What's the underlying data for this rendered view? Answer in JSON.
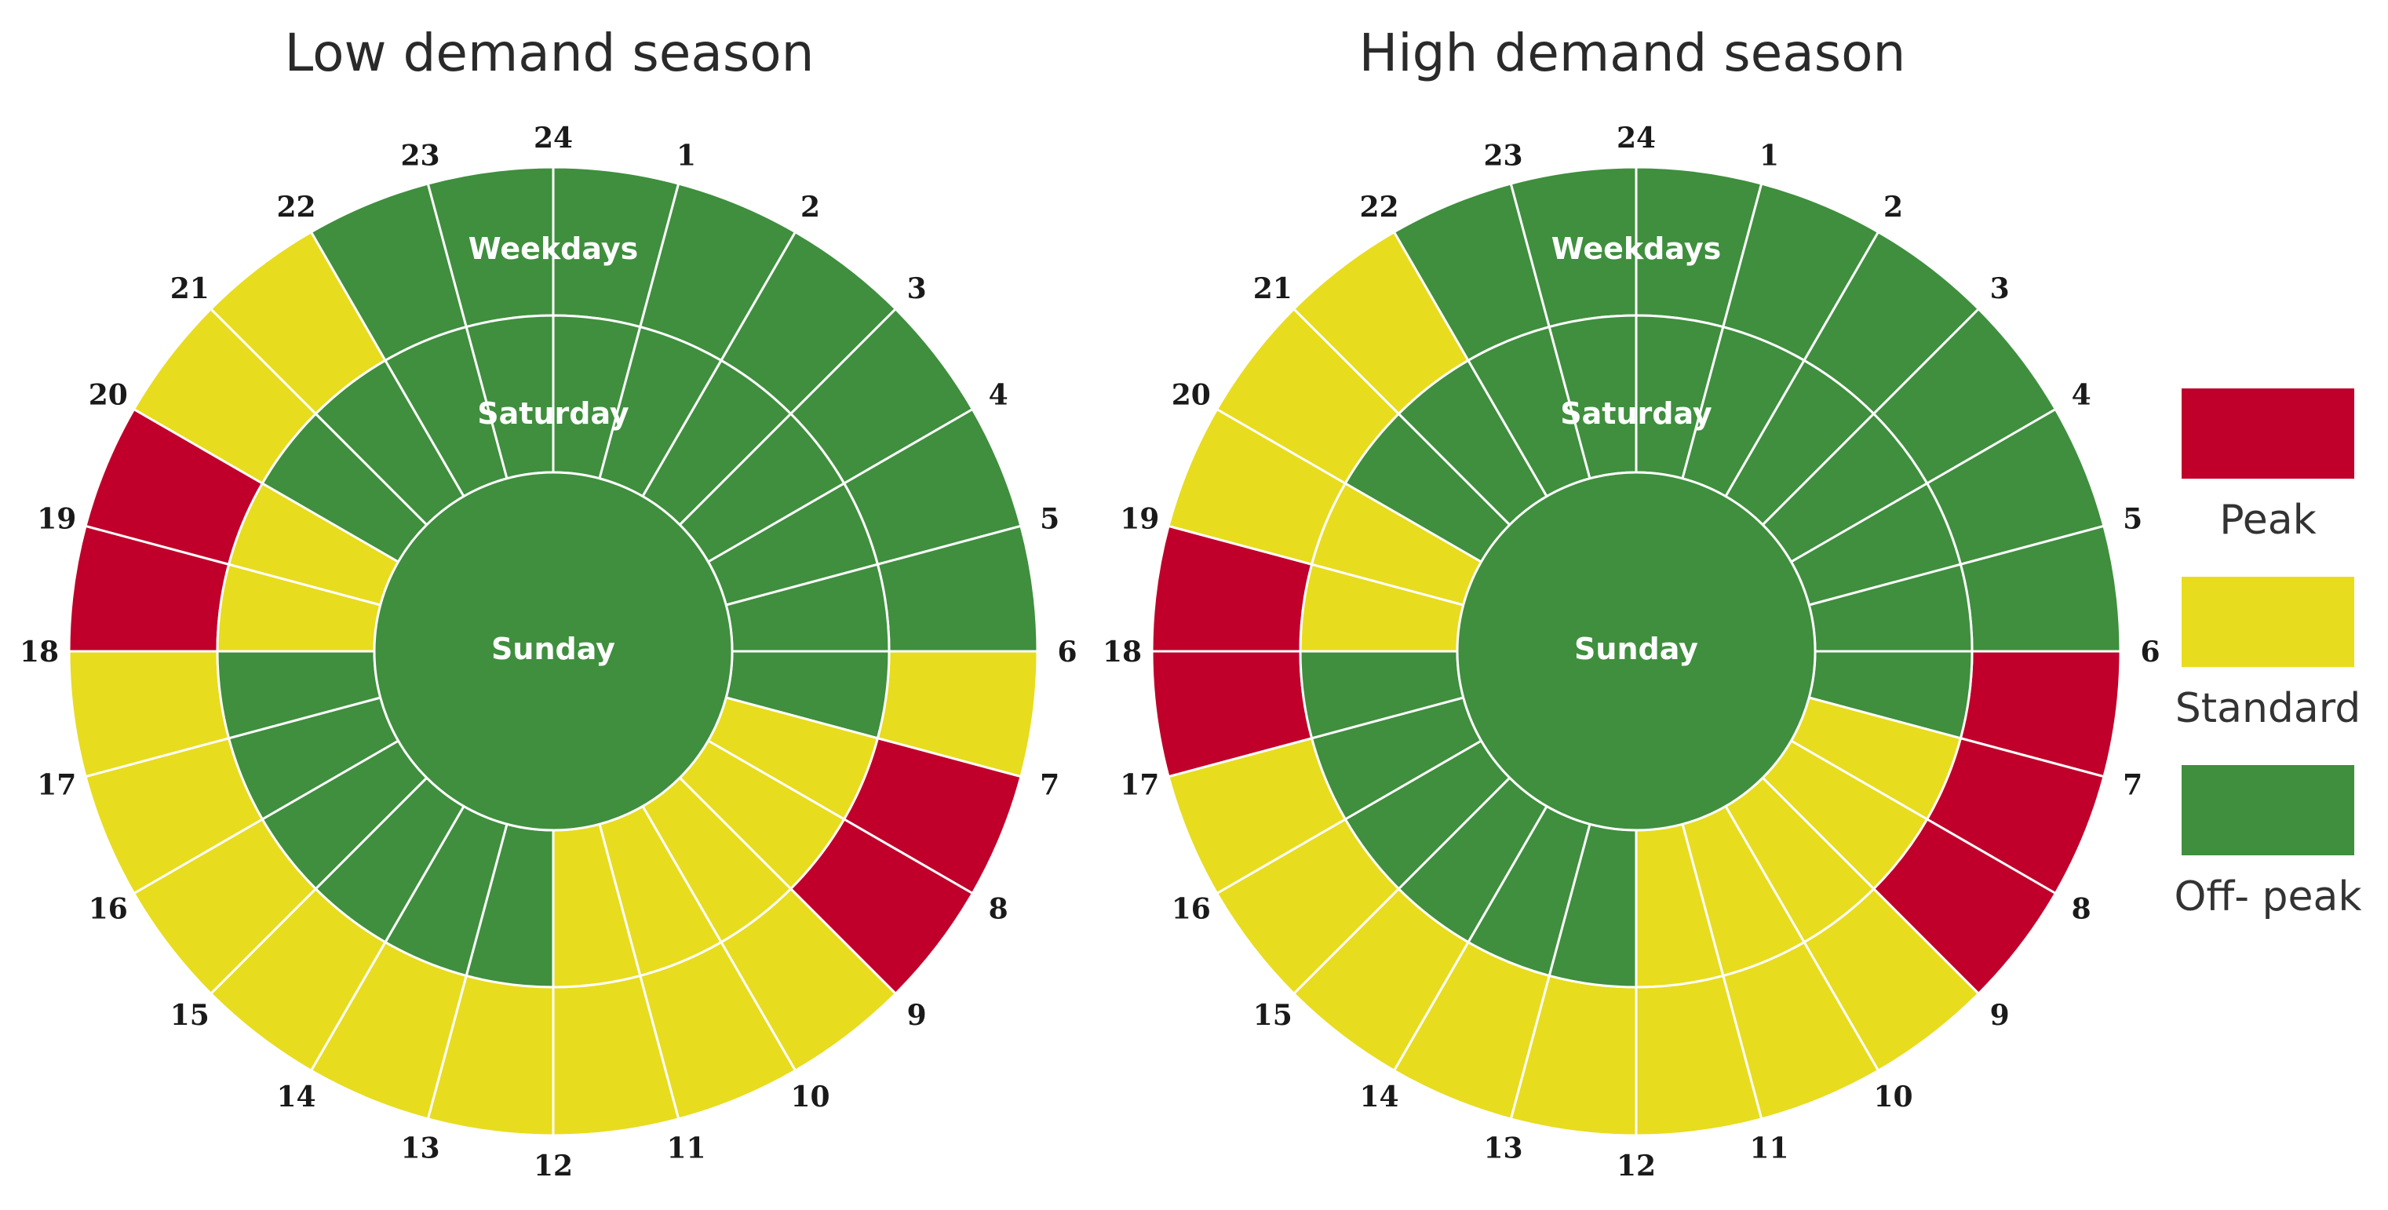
{
  "colors": {
    "peak": "#c0002a",
    "standard": "#e8dc1e",
    "offpeak": "#3f8f3e",
    "separator": "#ffffff"
  },
  "chart_data": [
    {
      "type": "radial-schedule",
      "title": "Low demand season",
      "hours": [
        "24",
        "1",
        "2",
        "3",
        "4",
        "5",
        "6",
        "7",
        "8",
        "9",
        "10",
        "11",
        "12",
        "13",
        "14",
        "15",
        "16",
        "17",
        "18",
        "19",
        "20",
        "21",
        "22",
        "23"
      ],
      "ring_labels": {
        "weekdays": "Weekdays",
        "saturday": "Saturday",
        "sunday": "Sunday"
      },
      "weekdays": [
        "offpeak",
        "offpeak",
        "offpeak",
        "offpeak",
        "offpeak",
        "offpeak",
        "standard",
        "peak",
        "peak",
        "standard",
        "standard",
        "standard",
        "standard",
        "standard",
        "standard",
        "standard",
        "standard",
        "standard",
        "peak",
        "peak",
        "standard",
        "standard",
        "offpeak",
        "offpeak"
      ],
      "saturday": [
        "offpeak",
        "offpeak",
        "offpeak",
        "offpeak",
        "offpeak",
        "offpeak",
        "offpeak",
        "standard",
        "standard",
        "standard",
        "standard",
        "standard",
        "offpeak",
        "offpeak",
        "offpeak",
        "offpeak",
        "offpeak",
        "offpeak",
        "standard",
        "standard",
        "offpeak",
        "offpeak",
        "offpeak",
        "offpeak"
      ],
      "sunday": "offpeak"
    },
    {
      "type": "radial-schedule",
      "title": "High demand season",
      "hours": [
        "24",
        "1",
        "2",
        "3",
        "4",
        "5",
        "6",
        "7",
        "8",
        "9",
        "10",
        "11",
        "12",
        "13",
        "14",
        "15",
        "16",
        "17",
        "18",
        "19",
        "20",
        "21",
        "22",
        "23"
      ],
      "ring_labels": {
        "weekdays": "Weekdays",
        "saturday": "Saturday",
        "sunday": "Sunday"
      },
      "weekdays": [
        "offpeak",
        "offpeak",
        "offpeak",
        "offpeak",
        "offpeak",
        "offpeak",
        "peak",
        "peak",
        "peak",
        "standard",
        "standard",
        "standard",
        "standard",
        "standard",
        "standard",
        "standard",
        "standard",
        "peak",
        "peak",
        "standard",
        "standard",
        "standard",
        "offpeak",
        "offpeak"
      ],
      "saturday": [
        "offpeak",
        "offpeak",
        "offpeak",
        "offpeak",
        "offpeak",
        "offpeak",
        "offpeak",
        "standard",
        "standard",
        "standard",
        "standard",
        "standard",
        "offpeak",
        "offpeak",
        "offpeak",
        "offpeak",
        "offpeak",
        "offpeak",
        "standard",
        "standard",
        "offpeak",
        "offpeak",
        "offpeak",
        "offpeak"
      ],
      "sunday": "offpeak"
    }
  ],
  "legend": [
    {
      "key": "peak",
      "label": "Peak"
    },
    {
      "key": "standard",
      "label": "Standard"
    },
    {
      "key": "offpeak",
      "label": "Off- peak"
    }
  ]
}
